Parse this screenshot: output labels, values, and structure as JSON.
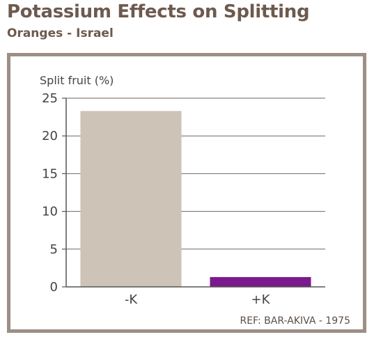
{
  "header": {
    "title": "Potassium Effects on Splitting",
    "subtitle": "Oranges - Israel"
  },
  "footer": {
    "reference": "REF: BAR-AKIVA - 1975"
  },
  "colors": {
    "title": "#6d5a4e",
    "frame": "#9c8f86",
    "bar_minus_k": "#cdc3b7",
    "bar_plus_k": "#7b1a8c",
    "axis": "#555555"
  },
  "chart_data": {
    "type": "bar",
    "title": "Potassium Effects on Splitting",
    "subtitle": "Oranges - Israel",
    "xlabel": "",
    "ylabel": "Split fruit (%)",
    "categories": [
      "-K",
      "+K"
    ],
    "values": [
      23.3,
      1.3
    ],
    "bar_colors": [
      "#cdc3b7",
      "#7b1a8c"
    ],
    "ylim": [
      0,
      25
    ],
    "yticks": [
      0,
      5,
      10,
      15,
      20,
      25
    ],
    "grid": true,
    "legend": "none"
  }
}
